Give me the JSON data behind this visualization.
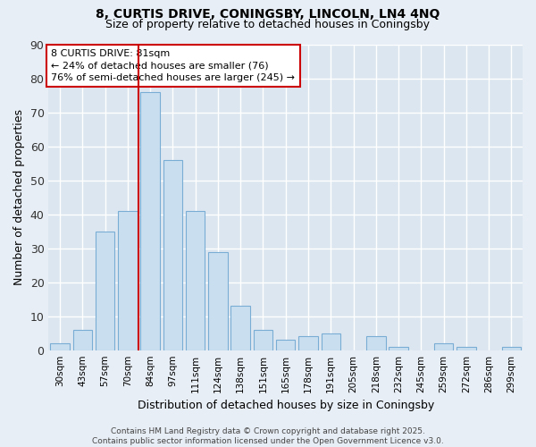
{
  "title1": "8, CURTIS DRIVE, CONINGSBY, LINCOLN, LN4 4NQ",
  "title2": "Size of property relative to detached houses in Coningsby",
  "xlabel": "Distribution of detached houses by size in Coningsby",
  "ylabel": "Number of detached properties",
  "categories": [
    "30sqm",
    "43sqm",
    "57sqm",
    "70sqm",
    "84sqm",
    "97sqm",
    "111sqm",
    "124sqm",
    "138sqm",
    "151sqm",
    "165sqm",
    "178sqm",
    "191sqm",
    "205sqm",
    "218sqm",
    "232sqm",
    "245sqm",
    "259sqm",
    "272sqm",
    "286sqm",
    "299sqm"
  ],
  "values": [
    2,
    6,
    35,
    41,
    76,
    56,
    41,
    29,
    13,
    6,
    3,
    4,
    5,
    0,
    4,
    1,
    0,
    2,
    1,
    0,
    1
  ],
  "bar_color": "#c9dff0",
  "bar_edge_color": "#7aadd4",
  "vline_color": "#cc0000",
  "annotation_text": "8 CURTIS DRIVE: 81sqm\n← 24% of detached houses are smaller (76)\n76% of semi-detached houses are larger (245) →",
  "annotation_box_color": "#ffffff",
  "annotation_box_edge": "#cc0000",
  "ylim": [
    0,
    90
  ],
  "yticks": [
    0,
    10,
    20,
    30,
    40,
    50,
    60,
    70,
    80,
    90
  ],
  "background_color": "#e8eef5",
  "plot_bg_color": "#dce6f0",
  "grid_color": "#ffffff",
  "footer": "Contains HM Land Registry data © Crown copyright and database right 2025.\nContains public sector information licensed under the Open Government Licence v3.0."
}
